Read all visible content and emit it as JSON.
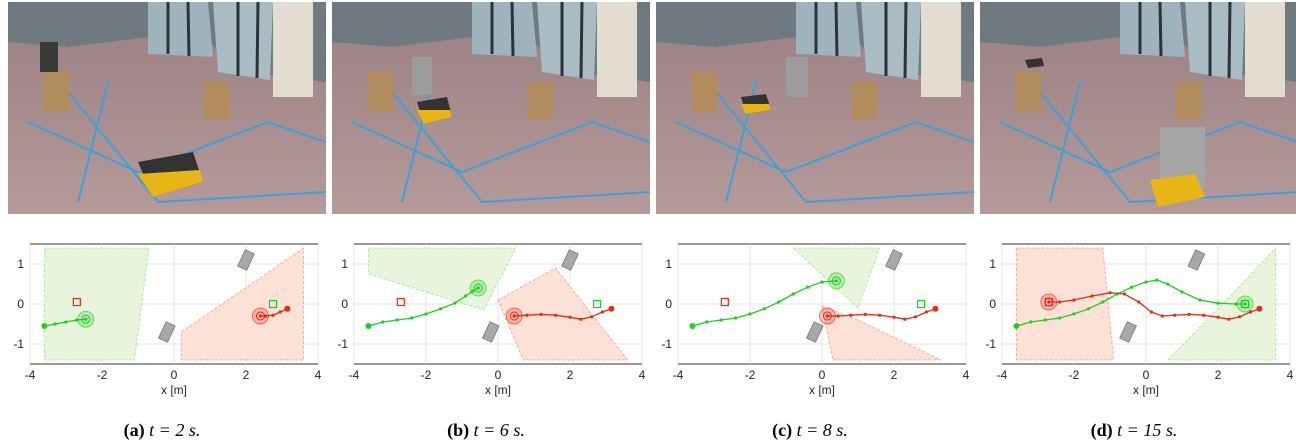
{
  "panels": [
    {
      "label": "(a)",
      "time_text": "t = 2 s."
    },
    {
      "label": "(b)",
      "time_text": "t = 6 s."
    },
    {
      "label": "(c)",
      "time_text": "t = 8 s."
    },
    {
      "label": "(d)",
      "time_text": "t = 15 s."
    }
  ],
  "colors": {
    "robot_green": "#22cc22",
    "robot_red": "#e52c14",
    "green_region": "#e8f5dc",
    "red_region": "#fbe1d6",
    "obstacle": "#a8a8a8"
  },
  "chart_data": [
    {
      "type": "line",
      "xlabel": "x [m]",
      "xlim": [
        -4,
        4
      ],
      "ylim": [
        -1.5,
        1.5
      ],
      "xticks": [
        -4,
        -2,
        0,
        2,
        4
      ],
      "yticks": [
        1,
        0,
        -1
      ],
      "xtick_labels": [
        "-4",
        "-2",
        "0",
        "2",
        "4"
      ],
      "ytick_labels": [
        "1",
        "0",
        "-1"
      ],
      "series": [
        {
          "color": "green",
          "points": [
            [
              -3.6,
              -0.55
            ],
            [
              -3.3,
              -0.5
            ],
            [
              -3.0,
              -0.45
            ],
            [
              -2.7,
              -0.4
            ],
            [
              -2.45,
              -0.38
            ]
          ]
        },
        {
          "color": "red",
          "points": [
            [
              3.15,
              -0.12
            ],
            [
              2.95,
              -0.2
            ],
            [
              2.75,
              -0.28
            ],
            [
              2.55,
              -0.3
            ],
            [
              2.4,
              -0.3
            ]
          ]
        }
      ],
      "goals": [
        {
          "color": "red",
          "x": -2.7,
          "y": 0.05
        },
        {
          "color": "green",
          "x": 2.75,
          "y": 0.0
        }
      ],
      "regions": [
        {
          "color": "green",
          "points": [
            [
              -3.6,
              1.4
            ],
            [
              -0.7,
              1.4
            ],
            [
              -1.1,
              -1.4
            ],
            [
              -3.6,
              -1.4
            ]
          ]
        },
        {
          "color": "red",
          "points": [
            [
              3.6,
              1.4
            ],
            [
              0.2,
              -0.7
            ],
            [
              0.2,
              -1.4
            ],
            [
              3.6,
              -1.4
            ]
          ]
        }
      ],
      "obstacles": [
        [
          2.0,
          1.1
        ],
        [
          -0.2,
          -0.7
        ]
      ]
    },
    {
      "type": "line",
      "xlabel": "x [m]",
      "xlim": [
        -4,
        4
      ],
      "ylim": [
        -1.5,
        1.5
      ],
      "xticks": [
        -4,
        -2,
        0,
        2,
        4
      ],
      "yticks": [
        1,
        0,
        -1
      ],
      "xtick_labels": [
        "-4",
        "-2",
        "0",
        "2",
        "4"
      ],
      "ytick_labels": [
        "1",
        "0",
        "-1"
      ],
      "series": [
        {
          "color": "green",
          "points": [
            [
              -3.6,
              -0.55
            ],
            [
              -3.2,
              -0.45
            ],
            [
              -2.8,
              -0.4
            ],
            [
              -2.4,
              -0.35
            ],
            [
              -2.0,
              -0.25
            ],
            [
              -1.6,
              -0.12
            ],
            [
              -1.2,
              0.02
            ],
            [
              -0.9,
              0.2
            ],
            [
              -0.7,
              0.32
            ],
            [
              -0.55,
              0.4
            ]
          ]
        },
        {
          "color": "red",
          "points": [
            [
              3.15,
              -0.12
            ],
            [
              2.9,
              -0.2
            ],
            [
              2.6,
              -0.32
            ],
            [
              2.3,
              -0.38
            ],
            [
              2.0,
              -0.33
            ],
            [
              1.6,
              -0.28
            ],
            [
              1.2,
              -0.26
            ],
            [
              0.8,
              -0.28
            ],
            [
              0.45,
              -0.3
            ]
          ]
        }
      ],
      "goals": [
        {
          "color": "red",
          "x": -2.7,
          "y": 0.05
        },
        {
          "color": "green",
          "x": 2.75,
          "y": 0.0
        }
      ],
      "regions": [
        {
          "color": "green",
          "points": [
            [
              -3.6,
              1.4
            ],
            [
              0.5,
              1.4
            ],
            [
              -0.4,
              -0.15
            ],
            [
              -3.6,
              0.75
            ]
          ]
        },
        {
          "color": "red",
          "points": [
            [
              0.0,
              0.1
            ],
            [
              1.6,
              0.9
            ],
            [
              3.6,
              -1.4
            ],
            [
              0.7,
              -1.4
            ]
          ]
        }
      ],
      "obstacles": [
        [
          2.0,
          1.1
        ],
        [
          -0.2,
          -0.7
        ]
      ]
    },
    {
      "type": "line",
      "xlabel": "x [m]",
      "xlim": [
        -4,
        4
      ],
      "ylim": [
        -1.5,
        1.5
      ],
      "xticks": [
        -4,
        -2,
        0,
        2,
        4
      ],
      "yticks": [
        1,
        0,
        -1
      ],
      "xtick_labels": [
        "-4",
        "-2",
        "0",
        "2",
        "4"
      ],
      "ytick_labels": [
        "1",
        "0",
        "-1"
      ],
      "series": [
        {
          "color": "green",
          "points": [
            [
              -3.6,
              -0.55
            ],
            [
              -3.2,
              -0.45
            ],
            [
              -2.8,
              -0.4
            ],
            [
              -2.4,
              -0.35
            ],
            [
              -2.0,
              -0.25
            ],
            [
              -1.6,
              -0.12
            ],
            [
              -1.2,
              0.05
            ],
            [
              -0.8,
              0.25
            ],
            [
              -0.4,
              0.42
            ],
            [
              -0.0,
              0.55
            ],
            [
              0.4,
              0.58
            ]
          ]
        },
        {
          "color": "red",
          "points": [
            [
              3.15,
              -0.12
            ],
            [
              2.9,
              -0.2
            ],
            [
              2.6,
              -0.32
            ],
            [
              2.3,
              -0.38
            ],
            [
              2.0,
              -0.33
            ],
            [
              1.6,
              -0.28
            ],
            [
              1.2,
              -0.26
            ],
            [
              0.8,
              -0.28
            ],
            [
              0.45,
              -0.3
            ],
            [
              0.15,
              -0.3
            ]
          ]
        }
      ],
      "goals": [
        {
          "color": "red",
          "x": -2.7,
          "y": 0.05
        },
        {
          "color": "green",
          "x": 2.75,
          "y": 0.0
        }
      ],
      "regions": [
        {
          "color": "green",
          "points": [
            [
              -0.8,
              1.4
            ],
            [
              1.6,
              1.4
            ],
            [
              1.0,
              -0.1
            ],
            [
              0.4,
              0.4
            ]
          ]
        },
        {
          "color": "red",
          "points": [
            [
              0.0,
              -0.05
            ],
            [
              1.0,
              -0.4
            ],
            [
              3.3,
              -1.4
            ],
            [
              0.3,
              -1.4
            ]
          ]
        }
      ],
      "obstacles": [
        [
          2.0,
          1.1
        ],
        [
          -0.2,
          -0.7
        ]
      ]
    },
    {
      "type": "line",
      "xlabel": "x [m]",
      "xlim": [
        -4,
        4
      ],
      "ylim": [
        -1.5,
        1.5
      ],
      "xticks": [
        -4,
        -2,
        0,
        2,
        4
      ],
      "yticks": [
        1,
        0,
        -1
      ],
      "xtick_labels": [
        "-4",
        "-2",
        "0",
        "2",
        "4"
      ],
      "ytick_labels": [
        "1",
        "0",
        "-1"
      ],
      "series": [
        {
          "color": "green",
          "points": [
            [
              -3.6,
              -0.55
            ],
            [
              -3.2,
              -0.45
            ],
            [
              -2.8,
              -0.4
            ],
            [
              -2.4,
              -0.35
            ],
            [
              -2.0,
              -0.25
            ],
            [
              -1.6,
              -0.12
            ],
            [
              -1.2,
              0.05
            ],
            [
              -0.8,
              0.25
            ],
            [
              -0.4,
              0.42
            ],
            [
              0.0,
              0.55
            ],
            [
              0.3,
              0.6
            ],
            [
              0.6,
              0.5
            ],
            [
              1.0,
              0.3
            ],
            [
              1.5,
              0.1
            ],
            [
              2.0,
              0.02
            ],
            [
              2.5,
              0.0
            ],
            [
              2.75,
              0.0
            ]
          ]
        },
        {
          "color": "red",
          "points": [
            [
              3.15,
              -0.12
            ],
            [
              2.9,
              -0.2
            ],
            [
              2.6,
              -0.32
            ],
            [
              2.3,
              -0.38
            ],
            [
              2.0,
              -0.33
            ],
            [
              1.6,
              -0.28
            ],
            [
              1.2,
              -0.26
            ],
            [
              0.8,
              -0.28
            ],
            [
              0.45,
              -0.3
            ],
            [
              0.15,
              -0.2
            ],
            [
              -0.2,
              0.05
            ],
            [
              -0.6,
              0.25
            ],
            [
              -1.0,
              0.28
            ],
            [
              -1.5,
              0.2
            ],
            [
              -2.0,
              0.1
            ],
            [
              -2.4,
              0.05
            ],
            [
              -2.7,
              0.05
            ]
          ]
        }
      ],
      "goals": [
        {
          "color": "red",
          "x": -2.7,
          "y": 0.05
        },
        {
          "color": "green",
          "x": 2.75,
          "y": 0.0
        }
      ],
      "regions": [
        {
          "color": "red",
          "points": [
            [
              -3.6,
              1.4
            ],
            [
              -1.2,
              1.4
            ],
            [
              -0.9,
              -1.4
            ],
            [
              -3.6,
              -1.4
            ]
          ]
        },
        {
          "color": "green",
          "points": [
            [
              3.6,
              1.4
            ],
            [
              3.6,
              -1.4
            ],
            [
              0.6,
              -1.4
            ],
            [
              2.4,
              0.25
            ]
          ]
        }
      ],
      "obstacles": [
        [
          1.4,
          1.1
        ],
        [
          -0.5,
          -0.7
        ]
      ]
    }
  ]
}
